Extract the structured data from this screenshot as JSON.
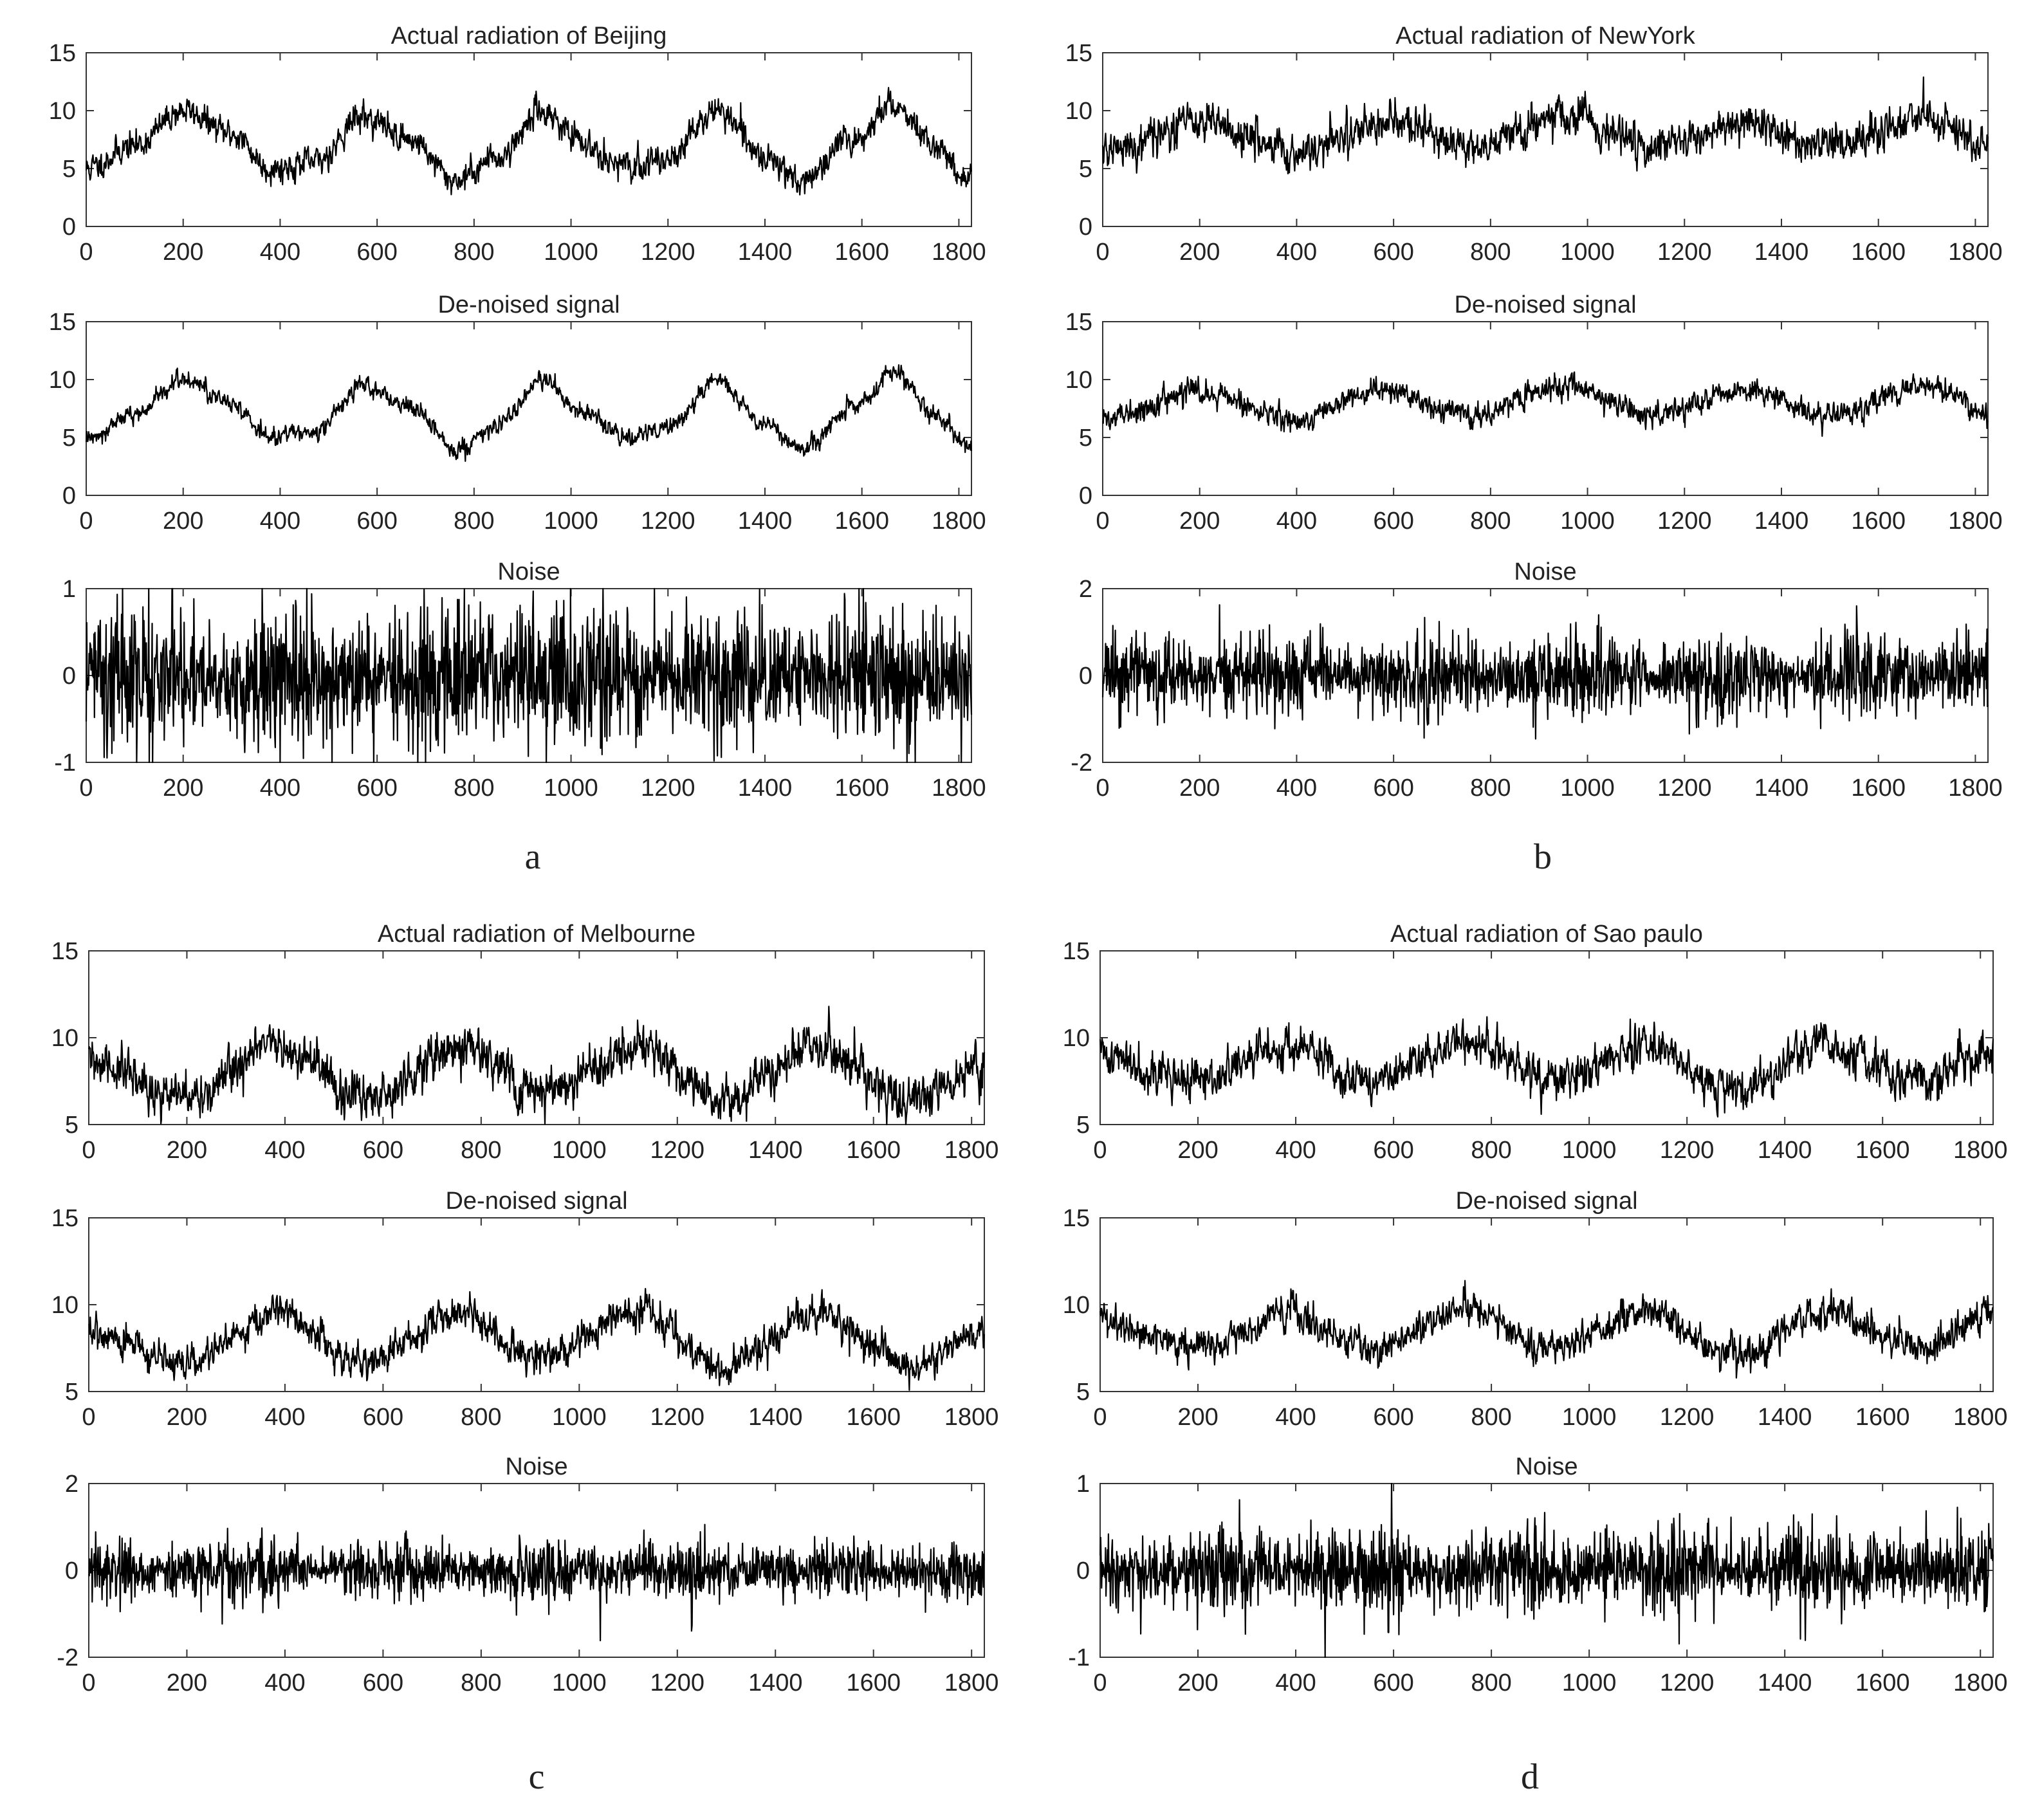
{
  "figure": {
    "panel_labels": [
      "a",
      "b",
      "c",
      "d"
    ]
  },
  "chart_data": [
    {
      "panel": "a",
      "type": "line",
      "title": "Actual radiation of Beijing",
      "xlim": [
        0,
        1826
      ],
      "ylim": [
        0,
        15
      ],
      "xticks": [
        0,
        200,
        400,
        600,
        800,
        1000,
        1200,
        1400,
        1600,
        1800
      ],
      "yticks": [
        0,
        5,
        10,
        15
      ],
      "base": {
        "mean": 7.2,
        "amp": 3.0,
        "phase": 105
      },
      "noise_std": 0.55,
      "seed": 11,
      "x": [
        0,
        100,
        200,
        300,
        380,
        470,
        570,
        670,
        760,
        850,
        940,
        1030,
        1120,
        1200,
        1300,
        1400,
        1480,
        1580,
        1670,
        1750,
        1826
      ],
      "y": [
        5,
        7,
        10,
        8,
        5,
        5.5,
        9.5,
        7.5,
        4,
        6,
        10,
        7,
        5,
        6,
        10,
        6,
        4,
        7.5,
        10.5,
        7,
        4
      ]
    },
    {
      "panel": "a",
      "type": "line",
      "title": "De-noised signal",
      "xlim": [
        0,
        1826
      ],
      "ylim": [
        0,
        15
      ],
      "xticks": [
        0,
        200,
        400,
        600,
        800,
        1000,
        1200,
        1400,
        1600,
        1800
      ],
      "yticks": [
        0,
        5,
        10,
        15
      ],
      "base": {
        "mean": 7.2,
        "amp": 3.0,
        "phase": 105
      },
      "noise_std": 0.35,
      "seed": 12,
      "x": [
        0,
        100,
        200,
        300,
        380,
        470,
        570,
        670,
        760,
        850,
        940,
        1030,
        1120,
        1200,
        1300,
        1400,
        1480,
        1580,
        1670,
        1750,
        1826
      ],
      "y": [
        5,
        7,
        10,
        8,
        5,
        5.5,
        9.5,
        7.5,
        4,
        6,
        10,
        7,
        5,
        6,
        10,
        6,
        4,
        7.5,
        10.5,
        7,
        4
      ]
    },
    {
      "panel": "a",
      "type": "line",
      "title": "Noise",
      "xlim": [
        0,
        1826
      ],
      "ylim": [
        -1,
        1
      ],
      "xticks": [
        0,
        200,
        400,
        600,
        800,
        1000,
        1200,
        1400,
        1600,
        1800
      ],
      "yticks": [
        -1,
        0,
        1
      ],
      "base": {
        "mean": 0,
        "amp": 0,
        "phase": 0
      },
      "noise_std": 0.26,
      "seed": 13,
      "x": [
        0,
        1826
      ],
      "y": [
        0,
        0
      ]
    },
    {
      "panel": "b",
      "type": "line",
      "title": "Actual radiation of NewYork",
      "xlim": [
        0,
        1826
      ],
      "ylim": [
        0,
        15
      ],
      "xticks": [
        0,
        200,
        400,
        600,
        800,
        1000,
        1200,
        1400,
        1600,
        1800
      ],
      "yticks": [
        0,
        5,
        10,
        15
      ],
      "base": {
        "mean": 7.8,
        "amp": 1.4,
        "phase": 105
      },
      "noise_std": 0.75,
      "seed": 21,
      "x": [
        0,
        200,
        400,
        580,
        760,
        950,
        1130,
        1320,
        1500,
        1700,
        1826
      ],
      "y": [
        6.5,
        9,
        6.5,
        9,
        7,
        9.5,
        7,
        9,
        7,
        9.5,
        7
      ]
    },
    {
      "panel": "b",
      "type": "line",
      "title": "De-noised signal",
      "xlim": [
        0,
        1826
      ],
      "ylim": [
        0,
        15
      ],
      "xticks": [
        0,
        200,
        400,
        600,
        800,
        1000,
        1200,
        1400,
        1600,
        1800
      ],
      "yticks": [
        0,
        5,
        10,
        15
      ],
      "base": {
        "mean": 7.8,
        "amp": 1.4,
        "phase": 105
      },
      "noise_std": 0.45,
      "seed": 22,
      "x": [
        0,
        200,
        400,
        580,
        760,
        950,
        1130,
        1320,
        1500,
        1700,
        1826
      ],
      "y": [
        6.5,
        9,
        6.5,
        9,
        7,
        9.5,
        7,
        9,
        7,
        9.5,
        7
      ]
    },
    {
      "panel": "b",
      "type": "line",
      "title": "Noise",
      "xlim": [
        0,
        1826
      ],
      "ylim": [
        -2,
        2
      ],
      "xticks": [
        0,
        200,
        400,
        600,
        800,
        1000,
        1200,
        1400,
        1600,
        1800
      ],
      "yticks": [
        -2,
        0,
        2
      ],
      "base": {
        "mean": 0,
        "amp": 0,
        "phase": 0
      },
      "noise_std": 0.3,
      "seed": 23,
      "x": [
        0,
        1826
      ],
      "y": [
        0,
        0
      ]
    },
    {
      "panel": "c",
      "type": "line",
      "title": "Actual radiation of Melbourne",
      "xlim": [
        0,
        1826
      ],
      "ylim": [
        5,
        15
      ],
      "xticks": [
        0,
        200,
        400,
        600,
        800,
        1000,
        1200,
        1400,
        1600,
        1800
      ],
      "yticks": [
        5,
        10,
        15
      ],
      "base": {
        "mean": 7.7,
        "amp": 1.3,
        "phase": -88
      },
      "noise_std": 0.6,
      "seed": 31,
      "x": [
        0,
        200,
        380,
        560,
        750,
        920,
        1120,
        1300,
        1480,
        1680,
        1826
      ],
      "y": [
        8.5,
        6.5,
        9.5,
        6.5,
        9.5,
        7,
        9.5,
        6.5,
        9.5,
        6.5,
        8.5
      ]
    },
    {
      "panel": "c",
      "type": "line",
      "title": "De-noised signal",
      "xlim": [
        0,
        1826
      ],
      "ylim": [
        5,
        15
      ],
      "xticks": [
        0,
        200,
        400,
        600,
        800,
        1000,
        1200,
        1400,
        1600,
        1800
      ],
      "yticks": [
        5,
        10,
        15
      ],
      "base": {
        "mean": 7.7,
        "amp": 1.3,
        "phase": -88
      },
      "noise_std": 0.45,
      "seed": 32,
      "x": [
        0,
        200,
        380,
        560,
        750,
        920,
        1120,
        1300,
        1480,
        1680,
        1826
      ],
      "y": [
        8.5,
        6.5,
        9.5,
        6.5,
        9.5,
        7,
        9.5,
        6.5,
        9.5,
        6.5,
        8.5
      ]
    },
    {
      "panel": "c",
      "type": "line",
      "title": "Noise",
      "xlim": [
        0,
        1826
      ],
      "ylim": [
        -2,
        2
      ],
      "xticks": [
        0,
        200,
        400,
        600,
        800,
        1000,
        1200,
        1400,
        1600,
        1800
      ],
      "yticks": [
        -2,
        0,
        2
      ],
      "base": {
        "mean": 0,
        "amp": 0,
        "phase": 0
      },
      "noise_std": 0.22,
      "seed": 33,
      "x": [
        0,
        1826
      ],
      "y": [
        0,
        0
      ]
    },
    {
      "panel": "d",
      "type": "line",
      "title": "Actual radiation of Sao paulo",
      "xlim": [
        0,
        1826
      ],
      "ylim": [
        5,
        15
      ],
      "xticks": [
        0,
        200,
        400,
        600,
        800,
        1000,
        1200,
        1400,
        1600,
        1800
      ],
      "yticks": [
        5,
        10,
        15
      ],
      "base": {
        "mean": 8.4,
        "amp": 0.9,
        "phase": -88
      },
      "noise_std": 0.55,
      "seed": 41,
      "x": [
        0,
        200,
        380,
        560,
        750,
        920,
        1120,
        1300,
        1480,
        1680,
        1826
      ],
      "y": [
        9,
        7.5,
        9.5,
        7.5,
        9.8,
        7.5,
        9.5,
        7,
        9.6,
        7.5,
        9.3
      ]
    },
    {
      "panel": "d",
      "type": "line",
      "title": "De-noised signal",
      "xlim": [
        0,
        1826
      ],
      "ylim": [
        5,
        15
      ],
      "xticks": [
        0,
        200,
        400,
        600,
        800,
        1000,
        1200,
        1400,
        1600,
        1800
      ],
      "yticks": [
        5,
        10,
        15
      ],
      "base": {
        "mean": 8.4,
        "amp": 0.9,
        "phase": -88
      },
      "noise_std": 0.45,
      "seed": 42,
      "x": [
        0,
        200,
        380,
        560,
        750,
        920,
        1120,
        1300,
        1480,
        1680,
        1826
      ],
      "y": [
        9,
        7.5,
        9.5,
        7.5,
        9.8,
        7.5,
        9.5,
        7,
        9.6,
        7.5,
        9.3
      ]
    },
    {
      "panel": "d",
      "type": "line",
      "title": "Noise",
      "xlim": [
        0,
        1826
      ],
      "ylim": [
        -1,
        1
      ],
      "xticks": [
        0,
        200,
        400,
        600,
        800,
        1000,
        1200,
        1400,
        1600,
        1800
      ],
      "yticks": [
        -1,
        0,
        1
      ],
      "base": {
        "mean": 0,
        "amp": 0,
        "phase": 0
      },
      "noise_std": 0.16,
      "seed": 43,
      "x": [
        0,
        1826
      ],
      "y": [
        0,
        0
      ]
    }
  ]
}
